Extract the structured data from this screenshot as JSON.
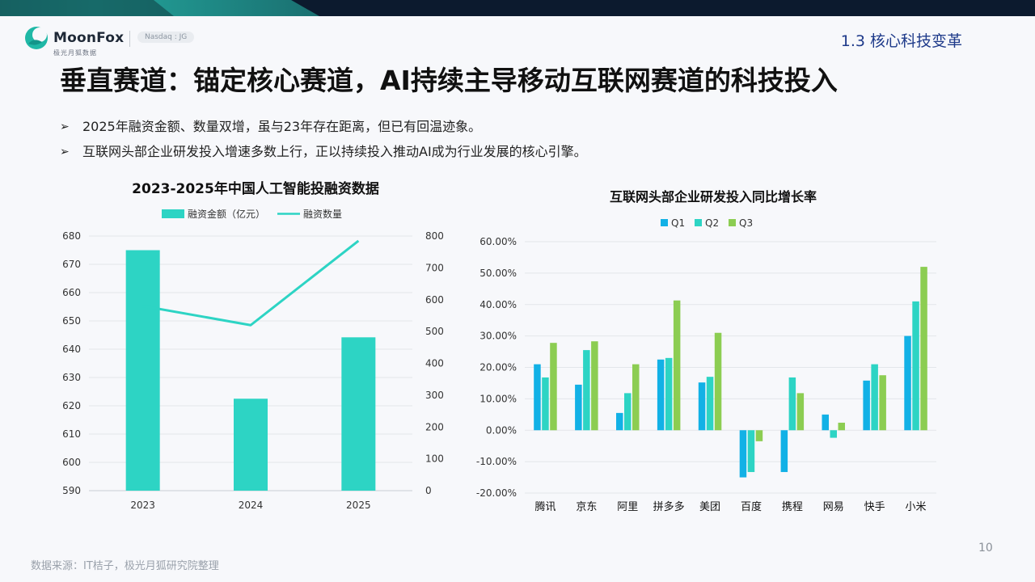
{
  "brand": {
    "name": "MoonFox",
    "tagline": "极光月狐数据",
    "badge": "Nasdaq : JG",
    "colors": {
      "teal": "#1fb8a6",
      "navy": "#0c1a2e",
      "title_blue": "#1e3a8a"
    }
  },
  "header": {
    "section": "1.3 核心科技变革",
    "title": "垂直赛道：锚定核心赛道，AI持续主导移动互联网赛道的科技投入"
  },
  "bullets": [
    "2025年融资金额、数量双增，虽与23年存在距离，但已有回温迹象。",
    "互联网头部企业研发投入增速多数上行，正以持续投入推动AI成为行业发展的核心引擎。"
  ],
  "chart_data": [
    {
      "type": "bar+line",
      "title": "2023-2025年中国人工智能投融资数据",
      "categories": [
        "2023",
        "2024",
        "2025"
      ],
      "series": [
        {
          "name": "融资金额（亿元）",
          "kind": "bar",
          "axis": "left",
          "values": [
            675,
            622.5,
            644.2
          ],
          "color": "#2dd4c4"
        },
        {
          "name": "融资数量",
          "kind": "line",
          "axis": "right",
          "values": [
            580,
            520,
            785
          ],
          "color": "#2dd4c4"
        }
      ],
      "y_left": {
        "min": 590,
        "max": 680,
        "step": 10,
        "ticks": [
          "590",
          "600",
          "610",
          "620",
          "630",
          "640",
          "650",
          "660",
          "670",
          "680"
        ]
      },
      "y_right": {
        "min": 0,
        "max": 800,
        "step": 100,
        "ticks": [
          "0",
          "100",
          "200",
          "300",
          "400",
          "500",
          "600",
          "700",
          "800"
        ]
      },
      "legend": "top",
      "grid": true
    },
    {
      "type": "bar",
      "title": "互联网头部企业研发投入同比增长率",
      "categories": [
        "腾讯",
        "京东",
        "阿里",
        "拼多多",
        "美团",
        "百度",
        "携程",
        "网易",
        "快手",
        "小米"
      ],
      "series": [
        {
          "name": "Q1",
          "color": "#12b1e6",
          "values": [
            21,
            14.5,
            5.5,
            22.5,
            15.2,
            -15,
            -13.3,
            5,
            15.8,
            30
          ]
        },
        {
          "name": "Q2",
          "color": "#2dd4c4",
          "values": [
            16.8,
            25.5,
            11.8,
            23,
            17,
            -13.3,
            16.8,
            -2.4,
            21,
            41
          ]
        },
        {
          "name": "Q3",
          "color": "#8ccd52",
          "values": [
            27.8,
            28.3,
            21,
            41.3,
            31,
            -3.5,
            11.8,
            2.4,
            17.5,
            52
          ]
        }
      ],
      "y": {
        "min": -20,
        "max": 60,
        "step": 10,
        "ticks": [
          "-20.00%",
          "-10.00%",
          "0.00%",
          "10.00%",
          "20.00%",
          "30.00%",
          "40.00%",
          "50.00%",
          "60.00%"
        ]
      },
      "legend": "top",
      "grid": true
    }
  ],
  "footer": {
    "source": "数据来源：IT桔子，极光月狐研究院整理",
    "page": "10"
  }
}
